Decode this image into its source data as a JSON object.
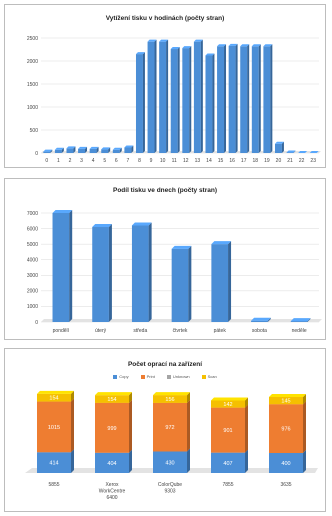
{
  "chart_data": [
    {
      "type": "bar",
      "title": "Vytížení tisku v hodinách (počty stran)",
      "categories": [
        "0",
        "1",
        "2",
        "3",
        "4",
        "5",
        "6",
        "7",
        "8",
        "9",
        "10",
        "11",
        "12",
        "13",
        "14",
        "15",
        "16",
        "17",
        "18",
        "19",
        "20",
        "21",
        "22",
        "23"
      ],
      "values": [
        30,
        70,
        100,
        90,
        90,
        80,
        70,
        120,
        2150,
        2420,
        2420,
        2260,
        2280,
        2420,
        2120,
        2320,
        2330,
        2320,
        2320,
        2320,
        200,
        10,
        0,
        0
      ],
      "ylim": [
        0,
        2500
      ],
      "yticks": [
        0,
        500,
        1000,
        1500,
        2000,
        2500
      ],
      "color": "#4b8ed6",
      "grid": true
    },
    {
      "type": "bar",
      "title": "Podíl tisku ve dnech (počty stran)",
      "categories": [
        "pondělí",
        "úterý",
        "středa",
        "čtvrtek",
        "pátek",
        "sobota",
        "neděle"
      ],
      "values": [
        7000,
        6100,
        6200,
        4700,
        5000,
        80,
        60
      ],
      "ylim": [
        0,
        7000
      ],
      "yticks": [
        0,
        1000,
        2000,
        3000,
        4000,
        5000,
        6000,
        7000
      ],
      "color": "#4b8ed6",
      "grid": true
    },
    {
      "type": "bar",
      "stacked": true,
      "title": "Počet oprací na zařízení",
      "categories": [
        "5855",
        "Xerox WorkCentre 6400",
        "ColorQube 9303",
        "7855",
        "3635"
      ],
      "series": [
        {
          "name": "Copy",
          "values": [
            414,
            404,
            430,
            407,
            400
          ],
          "color": "#4b8ed6"
        },
        {
          "name": "Print",
          "values": [
            1015,
            999,
            972,
            901,
            976
          ],
          "color": "#ee7d31"
        },
        {
          "name": "Unknown",
          "values": [
            0,
            0,
            0,
            0,
            0
          ],
          "color": "#a5a5a5"
        },
        {
          "name": "Scan",
          "values": [
            154,
            154,
            156,
            142,
            145
          ],
          "color": "#f5c000"
        }
      ],
      "legend": "top"
    }
  ]
}
